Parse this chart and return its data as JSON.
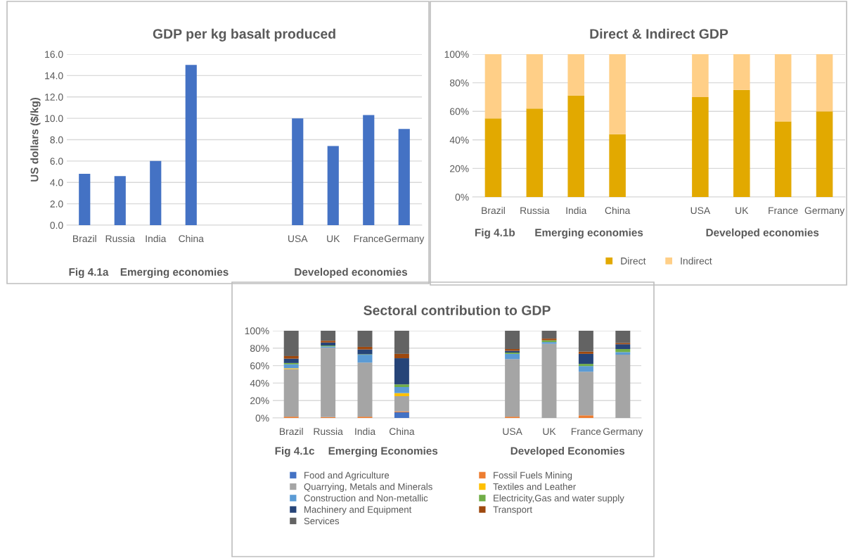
{
  "chart_data": [
    {
      "type": "bar",
      "title": "GDP per kg basalt produced",
      "ylabel": "US dollars ($/kg)",
      "categories": [
        "Brazil",
        "Russia",
        "India",
        "China",
        null,
        null,
        "USA",
        "UK",
        "France",
        "Germany"
      ],
      "values": [
        4.8,
        4.6,
        6.0,
        15.0,
        null,
        null,
        10.0,
        7.4,
        10.3,
        9.0
      ],
      "color": "#4472c4",
      "ylim": [
        0,
        16
      ],
      "yticks": [
        {
          "value": 0,
          "label": "0.0"
        },
        {
          "value": 2,
          "label": "2.0"
        },
        {
          "value": 4,
          "label": "4.0"
        },
        {
          "value": 6,
          "label": "6.0"
        },
        {
          "value": 8,
          "label": "8.0"
        },
        {
          "value": 10,
          "label": "10.0"
        },
        {
          "value": 12,
          "label": "12.0"
        },
        {
          "value": 14,
          "label": "14.0"
        },
        {
          "value": 16,
          "label": "16.0"
        }
      ],
      "grid": "y",
      "legend": false,
      "annotations": [
        "Fig 4.1a",
        "Emerging economies",
        "Developed economies"
      ]
    },
    {
      "type": "bar",
      "title": "Direct & Indirect GDP",
      "stacked": true,
      "categories": [
        "Brazil",
        "Russia",
        "India",
        "China",
        null,
        "USA",
        "UK",
        "France",
        "Germany"
      ],
      "series": [
        {
          "name": "Direct",
          "color": "#e2a900",
          "values": [
            55,
            62,
            71,
            44,
            null,
            70,
            75,
            53,
            60
          ]
        },
        {
          "name": "Indirect",
          "color": "#ffcf87",
          "values": [
            45,
            38,
            29,
            56,
            null,
            30,
            25,
            47,
            40
          ]
        }
      ],
      "ylim": [
        0,
        100
      ],
      "yticks": [
        {
          "value": 0,
          "label": "0%"
        },
        {
          "value": 20,
          "label": "20%"
        },
        {
          "value": 40,
          "label": "40%"
        },
        {
          "value": 60,
          "label": "60%"
        },
        {
          "value": 80,
          "label": "80%"
        },
        {
          "value": 100,
          "label": "100%"
        }
      ],
      "grid": "y",
      "legend": "bottom",
      "annotations": [
        "Fig 4.1b",
        "Emerging economies",
        "Developed economies"
      ]
    },
    {
      "type": "bar",
      "title": "Sectoral contribution to GDP",
      "stacked": true,
      "categories": [
        "Brazil",
        "Russia",
        "India",
        "China",
        null,
        null,
        "USA",
        "UK",
        "France",
        "Germany"
      ],
      "series": [
        {
          "name": "Food and Agriculture",
          "color": "#4472c4",
          "values": [
            0,
            0,
            0,
            6.5,
            null,
            null,
            0,
            0,
            0,
            0
          ]
        },
        {
          "name": "Fossil Fuels Mining",
          "color": "#ed7d31",
          "values": [
            1.5,
            1,
            1.5,
            1,
            null,
            null,
            1.5,
            0,
            3,
            0
          ]
        },
        {
          "name": "Quarrying, Metals and Minerals",
          "color": "#a5a5a5",
          "values": [
            54.5,
            79.5,
            62,
            17.5,
            null,
            null,
            66,
            85,
            50,
            72.5
          ]
        },
        {
          "name": "Textiles and Leather",
          "color": "#ffc000",
          "values": [
            1,
            0,
            0,
            3.5,
            null,
            null,
            0,
            0,
            0,
            0
          ]
        },
        {
          "name": "Construction and Non-metallic",
          "color": "#5b9bd5",
          "values": [
            4.5,
            1.5,
            9,
            7,
            null,
            null,
            6,
            2,
            6.5,
            3
          ]
        },
        {
          "name": "Electricity,Gas and water supply",
          "color": "#70ad47",
          "values": [
            1.5,
            1,
            0.5,
            3,
            null,
            null,
            1.5,
            2,
            2.5,
            3.5
          ]
        },
        {
          "name": "Machinery and Equipment",
          "color": "#264478",
          "values": [
            5,
            3.5,
            5.5,
            30,
            null,
            null,
            2,
            0,
            11.5,
            5.5
          ]
        },
        {
          "name": "Transport",
          "color": "#9e480e",
          "values": [
            3,
            2,
            3,
            5,
            null,
            null,
            2,
            2,
            2.5,
            1.5
          ]
        },
        {
          "name": "Services",
          "color": "#636363",
          "values": [
            29,
            11.5,
            18.5,
            26.5,
            null,
            null,
            21,
            9,
            24,
            14
          ]
        }
      ],
      "ylim": [
        0,
        100
      ],
      "yticks": [
        {
          "value": 0,
          "label": "0%"
        },
        {
          "value": 20,
          "label": "20%"
        },
        {
          "value": 40,
          "label": "40%"
        },
        {
          "value": 60,
          "label": "60%"
        },
        {
          "value": 80,
          "label": "80%"
        },
        {
          "value": 100,
          "label": "100%"
        }
      ],
      "grid": "y",
      "legend": "bottom",
      "annotations": [
        "Fig 4.1c",
        "Emerging Economies",
        "Developed Economies"
      ]
    }
  ]
}
